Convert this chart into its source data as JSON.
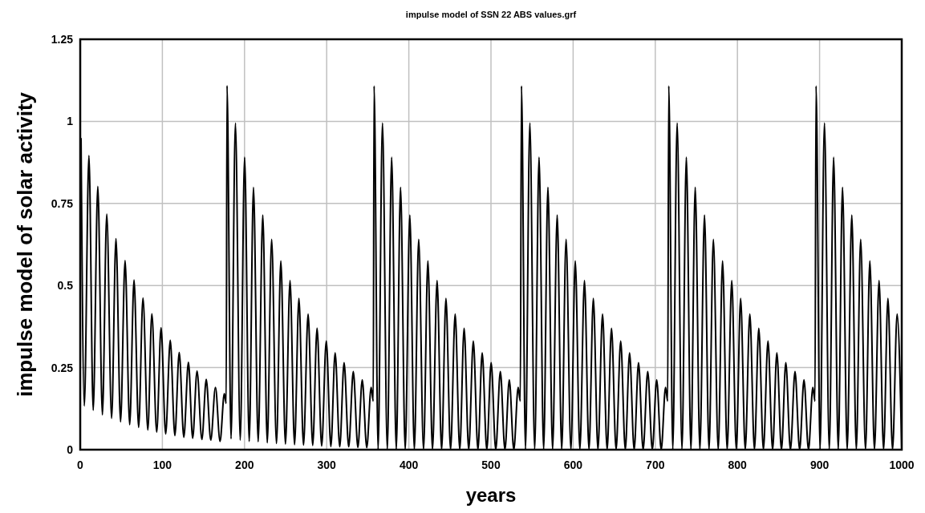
{
  "chart_data": {
    "type": "line",
    "title": "impulse model of SSN 22 ABS values.grf",
    "xlabel": "years",
    "ylabel": "impulse model of solar activity",
    "xlim": [
      0,
      1000
    ],
    "xticks": [
      0,
      100,
      200,
      300,
      400,
      500,
      600,
      700,
      800,
      900,
      1000
    ],
    "ylim": [
      0,
      1.25
    ],
    "yticks": [
      0,
      {
        "value": 0.25,
        "label": "0.25"
      },
      {
        "value": 0.5,
        "label": "0.5"
      },
      {
        "value": 0.75,
        "label": "0.75"
      },
      1,
      {
        "value": 1.25,
        "label": "1.25"
      }
    ],
    "grid": true,
    "x": [
      1.0,
      5.0,
      10.6,
      15.8,
      21.4,
      27.0,
      32.3,
      38.2,
      43.5,
      49.1,
      54.6,
      60.2,
      65.5,
      71.1,
      76.4,
      82.3,
      87.2,
      93.1,
      98.4,
      104.0,
      109.6,
      115.2,
      120.5,
      126.1,
      131.7,
      136.9,
      142.2,
      148.1,
      153.4,
      158.9,
      164.6,
      170.2,
      175.4,
      177.7,
      178.7,
      183.6,
      188.9,
      194.8,
      200.1,
      205.7,
      210.9,
      216.6,
      222.2,
      227.7,
      233.0,
      238.9,
      244.2,
      249.8,
      255.4,
      260.9,
      266.2,
      271.8,
      277.4,
      283.0,
      288.3,
      293.9,
      299.5,
      305.1,
      310.3,
      315.9,
      321.2,
      326.8,
      332.4,
      338.0,
      343.3,
      348.8,
      354.1,
      356.7,
      357.7,
      362.6,
      367.9,
      373.8,
      379.1,
      384.7,
      389.9,
      395.6,
      401.2,
      406.7,
      412.0,
      417.9,
      423.2,
      428.8,
      434.4,
      439.9,
      445.2,
      450.8,
      456.4,
      462.0,
      467.3,
      472.9,
      478.5,
      484.1,
      489.3,
      494.9,
      500.2,
      505.8,
      511.4,
      517.0,
      522.3,
      527.8,
      533.1,
      535.7,
      537.1,
      542.0,
      547.3,
      553.2,
      558.5,
      564.1,
      569.3,
      575.0,
      580.6,
      586.1,
      591.4,
      597.3,
      602.6,
      608.2,
      613.8,
      619.3,
      624.6,
      630.2,
      635.8,
      641.4,
      646.7,
      652.3,
      657.9,
      663.5,
      668.7,
      674.3,
      679.6,
      685.2,
      690.8,
      696.4,
      701.7,
      707.2,
      712.5,
      715.1,
      716.4,
      721.3,
      726.6,
      732.5,
      737.8,
      743.4,
      748.6,
      754.3,
      759.9,
      765.4,
      770.7,
      776.6,
      781.9,
      787.5,
      793.1,
      798.6,
      803.9,
      809.5,
      815.1,
      820.7,
      826.0,
      831.6,
      837.2,
      842.8,
      848.0,
      853.6,
      858.9,
      864.5,
      870.1,
      875.7,
      881.0,
      886.5,
      891.8,
      894.4,
      895.7,
      900.6,
      905.9,
      911.8,
      917.1,
      922.7,
      927.9,
      933.6,
      939.2,
      944.7,
      950.0,
      955.9,
      961.2,
      966.8,
      972.4,
      977.9,
      983.2,
      988.8,
      994.4,
      1000
    ],
    "series": [
      {
        "color": "#000000",
        "values": [
          0.949,
          0.133,
          0.896,
          0.12,
          0.802,
          0.106,
          0.718,
          0.095,
          0.643,
          0.085,
          0.576,
          0.076,
          0.517,
          0.068,
          0.462,
          0.06,
          0.414,
          0.054,
          0.371,
          0.048,
          0.333,
          0.043,
          0.296,
          0.038,
          0.266,
          0.035,
          0.24,
          0.031,
          0.214,
          0.029,
          0.19,
          0.025,
          0.171,
          0.141,
          1.109,
          0.033,
          0.995,
          0.029,
          0.891,
          0.025,
          0.799,
          0.024,
          0.715,
          0.021,
          0.641,
          0.019,
          0.575,
          0.017,
          0.515,
          0.015,
          0.461,
          0.014,
          0.413,
          0.013,
          0.37,
          0.011,
          0.331,
          0.01,
          0.295,
          0.009,
          0.265,
          0.009,
          0.238,
          0.007,
          0.213,
          0.006,
          0.19,
          0.148,
          1.108,
          0,
          0.995,
          0,
          0.891,
          0,
          0.799,
          0,
          0.715,
          0,
          0.641,
          0,
          0.575,
          0,
          0.515,
          0,
          0.461,
          0,
          0.413,
          0,
          0.37,
          0,
          0.331,
          0,
          0.295,
          0,
          0.265,
          0,
          0.238,
          0,
          0.213,
          0,
          0.19,
          0.148,
          1.108,
          0,
          0.995,
          0,
          0.891,
          0,
          0.799,
          0,
          0.715,
          0,
          0.641,
          0,
          0.575,
          0,
          0.515,
          0,
          0.461,
          0,
          0.413,
          0,
          0.37,
          0,
          0.331,
          0,
          0.295,
          0,
          0.265,
          0,
          0.238,
          0,
          0.213,
          0,
          0.19,
          0.148,
          1.108,
          0,
          0.995,
          0,
          0.891,
          0,
          0.799,
          0,
          0.715,
          0,
          0.641,
          0,
          0.575,
          0,
          0.515,
          0,
          0.461,
          0,
          0.413,
          0,
          0.37,
          0,
          0.331,
          0,
          0.295,
          0,
          0.265,
          0,
          0.238,
          0,
          0.213,
          0,
          0.19,
          0.148,
          1.108,
          0,
          0.995,
          0,
          0.891,
          0,
          0.799,
          0,
          0.715,
          0,
          0.641,
          0,
          0.575,
          0,
          0.515,
          0,
          0.461,
          0,
          0.413,
          0
        ]
      }
    ]
  }
}
